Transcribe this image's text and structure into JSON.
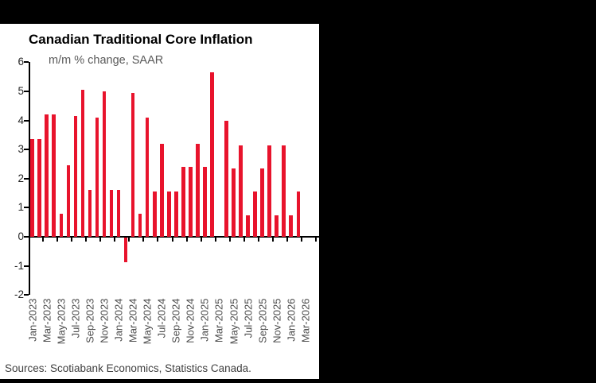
{
  "page": {
    "background_color": "#000000",
    "panel_color": "#ffffff"
  },
  "chart": {
    "title": "Canadian Traditional Core Inflation",
    "subtitle": "m/m % change, SAAR",
    "source": "Sources: Scotiabank Economics, Statistics Canada.",
    "bar_color": "#e8132c",
    "axis_color": "#000000"
  },
  "chart_data": {
    "type": "bar",
    "title": "Canadian Traditional Core Inflation",
    "subtitle": "m/m % change, SAAR",
    "xlabel": "",
    "ylabel": "m/m % change, SAAR",
    "ylim": [
      -2,
      6
    ],
    "yticks": [
      6,
      5,
      4,
      3,
      2,
      1,
      0,
      -1,
      -2
    ],
    "grid": false,
    "legend": "none",
    "bar_color": "#e8132c",
    "categories": [
      "Jan-2023",
      "Feb-2023",
      "Mar-2023",
      "Apr-2023",
      "May-2023",
      "Jun-2023",
      "Jul-2023",
      "Aug-2023",
      "Sep-2023",
      "Oct-2023",
      "Nov-2023",
      "Dec-2023",
      "Jan-2024",
      "Feb-2024",
      "Mar-2024",
      "Apr-2024",
      "May-2024",
      "Jun-2024",
      "Jul-2024",
      "Aug-2024",
      "Sep-2024",
      "Oct-2024",
      "Nov-2024",
      "Dec-2024",
      "Jan-2025",
      "Feb-2025",
      "Mar-2025",
      "Apr-2025",
      "May-2025",
      "Jun-2025",
      "Jul-2025",
      "Aug-2025",
      "Sep-2025",
      "Oct-2025",
      "Nov-2025",
      "Dec-2025",
      "Jan-2026",
      "Feb-2026",
      "Mar-2026"
    ],
    "values": [
      3.35,
      3.35,
      4.2,
      4.2,
      0.8,
      2.45,
      4.15,
      5.05,
      1.6,
      4.1,
      5.0,
      1.6,
      1.6,
      -0.85,
      4.95,
      0.8,
      4.1,
      1.55,
      3.2,
      1.55,
      1.55,
      2.4,
      2.4,
      3.2,
      2.4,
      5.65,
      0,
      4.0,
      2.35,
      3.15,
      0.75,
      1.55,
      2.35,
      3.15,
      0.75,
      3.15,
      0.75,
      1.55,
      null
    ],
    "xtick_labels": [
      "Jan-2023",
      "Mar-2023",
      "May-2023",
      "Jul-2023",
      "Sep-2023",
      "Nov-2023",
      "Jan-2024",
      "Mar-2024",
      "May-2024",
      "Jul-2024",
      "Sep-2024",
      "Nov-2024",
      "Jan-2025",
      "Mar-2025",
      "May-2025",
      "Jul-2025",
      "Sep-2025",
      "Nov-2025",
      "Jan-2026",
      "Mar-2026"
    ]
  }
}
